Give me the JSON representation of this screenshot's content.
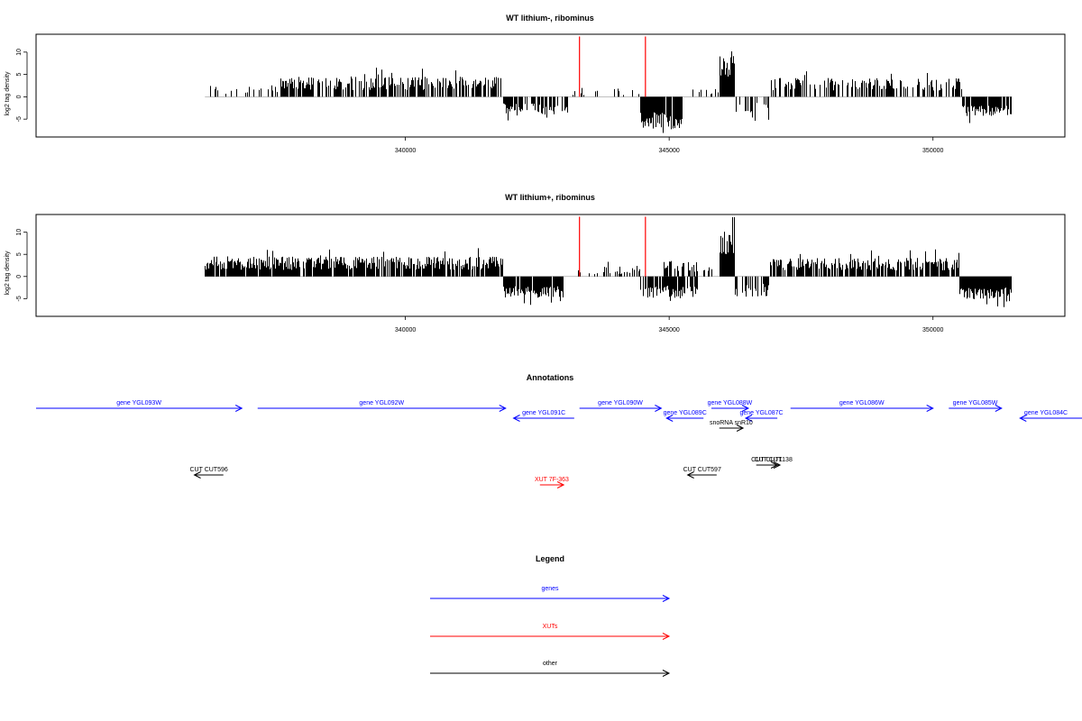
{
  "chart_data": [
    {
      "type": "bar",
      "title": "WT lithium-, ribominus",
      "ylabel": "log2 tag density",
      "xlabel": "",
      "xlim": [
        333000,
        352500
      ],
      "ylim": [
        -9,
        14
      ],
      "xticks": [
        340000,
        345000,
        350000
      ],
      "xtick_labels": [
        "340000",
        "345000",
        "350000"
      ],
      "yticks": [
        -5,
        0,
        5,
        10
      ],
      "ytick_labels": [
        "-5",
        "0",
        "5",
        "10"
      ],
      "markers": [
        343300,
        344550
      ],
      "marker_color": "#ff0000",
      "segments": [
        {
          "from": 336200,
          "to": 337600,
          "mean": 1.5,
          "var": 1.2,
          "density": 0.25,
          "sign": 1
        },
        {
          "from": 337600,
          "to": 341850,
          "mean": 3.0,
          "var": 1.5,
          "density": 0.7,
          "sign": 1
        },
        {
          "from": 341850,
          "to": 343100,
          "mean": 2.8,
          "var": 1.3,
          "density": 0.6,
          "sign": -1
        },
        {
          "from": 343100,
          "to": 344450,
          "mean": 1.2,
          "var": 1.0,
          "density": 0.12,
          "sign": 1
        },
        {
          "from": 344450,
          "to": 345250,
          "mean": 5.5,
          "var": 2.0,
          "density": 0.95,
          "sign": -1
        },
        {
          "from": 345250,
          "to": 345950,
          "mean": 1.5,
          "var": 1.0,
          "density": 0.1,
          "sign": 1
        },
        {
          "from": 345950,
          "to": 346250,
          "mean": 7.5,
          "var": 3.0,
          "density": 1.0,
          "sign": 1
        },
        {
          "from": 346250,
          "to": 346900,
          "mean": 2.5,
          "var": 1.2,
          "density": 0.25,
          "sign": -1
        },
        {
          "from": 346900,
          "to": 350550,
          "mean": 2.8,
          "var": 1.4,
          "density": 0.55,
          "sign": 1
        },
        {
          "from": 350550,
          "to": 351500,
          "mean": 3.2,
          "var": 1.2,
          "density": 0.9,
          "sign": -1
        }
      ]
    },
    {
      "type": "bar",
      "title": "WT lithium+, ribominus",
      "ylabel": "log2 tag density",
      "xlabel": "",
      "xlim": [
        333000,
        352500
      ],
      "ylim": [
        -9,
        14
      ],
      "xticks": [
        340000,
        345000,
        350000
      ],
      "xtick_labels": [
        "340000",
        "345000",
        "350000"
      ],
      "yticks": [
        -5,
        0,
        5,
        10
      ],
      "ytick_labels": [
        "-5",
        "0",
        "5",
        "10"
      ],
      "markers": [
        343300,
        344550
      ],
      "marker_color": "#ff0000",
      "segments": [
        {
          "from": 336200,
          "to": 341850,
          "mean": 3.0,
          "var": 1.5,
          "density": 0.9,
          "sign": 1
        },
        {
          "from": 341850,
          "to": 343000,
          "mean": 3.5,
          "var": 1.3,
          "density": 0.95,
          "sign": -1
        },
        {
          "from": 343000,
          "to": 344450,
          "mean": 1.5,
          "var": 1.0,
          "density": 0.25,
          "sign": 1
        },
        {
          "from": 344450,
          "to": 345550,
          "mean": 3.5,
          "var": 1.4,
          "density": 0.8,
          "sign": -1
        },
        {
          "from": 344900,
          "to": 345550,
          "mean": 2.2,
          "var": 1.2,
          "density": 0.6,
          "sign": 1
        },
        {
          "from": 345550,
          "to": 345950,
          "mean": 1.5,
          "var": 1.0,
          "density": 0.2,
          "sign": 1
        },
        {
          "from": 345950,
          "to": 346250,
          "mean": 7.5,
          "var": 3.0,
          "density": 1.0,
          "sign": 1
        },
        {
          "from": 346250,
          "to": 346900,
          "mean": 3.0,
          "var": 1.5,
          "density": 0.6,
          "sign": -1
        },
        {
          "from": 346900,
          "to": 350500,
          "mean": 2.8,
          "var": 1.4,
          "density": 0.8,
          "sign": 1
        },
        {
          "from": 350500,
          "to": 351500,
          "mean": 3.8,
          "var": 1.3,
          "density": 1.0,
          "sign": -1
        }
      ]
    }
  ],
  "annotations": {
    "title": "Annotations",
    "items": [
      {
        "label": "gene YGL093W",
        "start": 333000,
        "end": 336900,
        "strand": "+",
        "kind": "gene",
        "row": 0
      },
      {
        "label": "gene YGL092W",
        "start": 337200,
        "end": 341900,
        "strand": "+",
        "kind": "gene",
        "row": 0
      },
      {
        "label": "gene YGL091C",
        "start": 342050,
        "end": 343200,
        "strand": "-",
        "kind": "gene",
        "row": 1
      },
      {
        "label": "gene YGL090W",
        "start": 343300,
        "end": 344850,
        "strand": "+",
        "kind": "gene",
        "row": 0
      },
      {
        "label": "gene YGL089C",
        "start": 344950,
        "end": 345650,
        "strand": "-",
        "kind": "gene",
        "row": 1
      },
      {
        "label": "gene YGL088W",
        "start": 345800,
        "end": 346500,
        "strand": "+",
        "kind": "gene",
        "row": 0
      },
      {
        "label": "gene YGL087C",
        "start": 346450,
        "end": 347050,
        "strand": "-",
        "kind": "gene",
        "row": 1
      },
      {
        "label": "gene YGL086W",
        "start": 347300,
        "end": 350000,
        "strand": "+",
        "kind": "gene",
        "row": 0
      },
      {
        "label": "gene YGL085W",
        "start": 350300,
        "end": 351300,
        "strand": "+",
        "kind": "gene",
        "row": 0
      },
      {
        "label": "gene YGL084C",
        "start": 351650,
        "end": 353500,
        "strand": "-",
        "kind": "gene",
        "row": 1
      },
      {
        "label": "snoRNA snR10",
        "start": 345950,
        "end": 346400,
        "strand": "+",
        "kind": "other",
        "row": 2
      },
      {
        "label": "CUT CUT596",
        "start": 336000,
        "end": 336550,
        "strand": "-",
        "kind": "other",
        "row": 4
      },
      {
        "label": "XUT 7F-363",
        "start": 342550,
        "end": 343000,
        "strand": "+",
        "kind": "xut",
        "row": 5
      },
      {
        "label": "CUT CUT597",
        "start": 345350,
        "end": 345900,
        "strand": "-",
        "kind": "other",
        "row": 4
      },
      {
        "label": "CUT CUT1",
        "start": 346650,
        "end": 347050,
        "strand": "+",
        "kind": "other",
        "row": 3
      },
      {
        "label": "CUT CUT138",
        "start": 346850,
        "end": 347100,
        "strand": "+",
        "kind": "other",
        "row": 3
      }
    ]
  },
  "legend": {
    "title": "Legend",
    "entries": [
      {
        "label": "genes",
        "color": "#0000ff"
      },
      {
        "label": "XUTs",
        "color": "#ff0000"
      },
      {
        "label": "other",
        "color": "#000000"
      }
    ]
  },
  "colors": {
    "gene": "#0000ff",
    "xut": "#ff0000",
    "other": "#000000",
    "bars": "#000000",
    "baseline": "#aaaaaa"
  }
}
